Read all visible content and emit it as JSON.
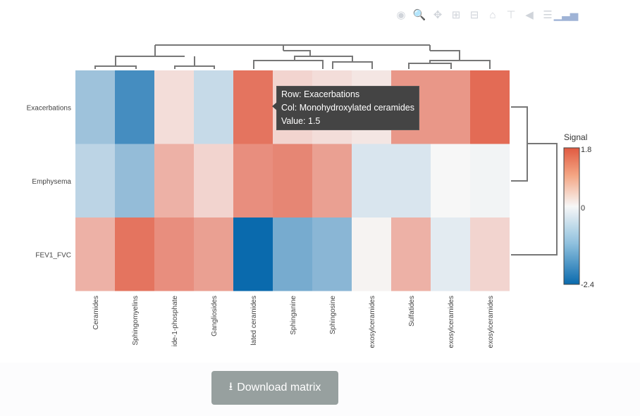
{
  "toolbar": {
    "icons": [
      "camera-icon",
      "zoom-icon",
      "pan-icon",
      "zoom-in-icon",
      "zoom-out-icon",
      "home-icon",
      "spike-lines-icon",
      "hover-closest-icon",
      "hover-compare-icon",
      "plotly-logo-icon"
    ]
  },
  "chart_data": {
    "type": "heatmap",
    "rows": [
      "Exacerbations",
      "Emphysema",
      "FEV1_FVC"
    ],
    "columns": [
      "Ceramides",
      "Sphingomyelins",
      "ide-1-phosphate",
      "Gangliosides",
      "lated ceramides",
      "Sphinganine",
      "Sphingosine",
      "exosylceramides",
      "Sulfatides",
      "exosylceramides",
      "exosylceramides"
    ],
    "values": [
      [
        -0.9,
        -1.8,
        0.3,
        -0.5,
        1.5,
        0.4,
        0.3,
        0.2,
        1.1,
        1.1,
        1.6
      ],
      [
        -0.6,
        -1.0,
        0.8,
        0.4,
        1.2,
        1.3,
        1.0,
        -0.3,
        -0.3,
        0.0,
        -0.05
      ],
      [
        0.8,
        1.5,
        1.2,
        1.0,
        -2.4,
        -1.3,
        -1.1,
        0.05,
        0.8,
        -0.2,
        0.4
      ]
    ],
    "colorbar": {
      "title": "Signal",
      "range": [
        -2.4,
        1.8
      ],
      "ticks": [
        "1.8",
        "0",
        "-2.4"
      ],
      "colors": {
        "low": "#0a6aad",
        "mid": "#f7f7f7",
        "high": "#e05a41"
      }
    },
    "tooltip": {
      "row": "Row: Exacerbations",
      "col": "Col: Monohydroxylated ceramides",
      "value": "Value: 1.5"
    }
  },
  "download_label": "Download matrix"
}
